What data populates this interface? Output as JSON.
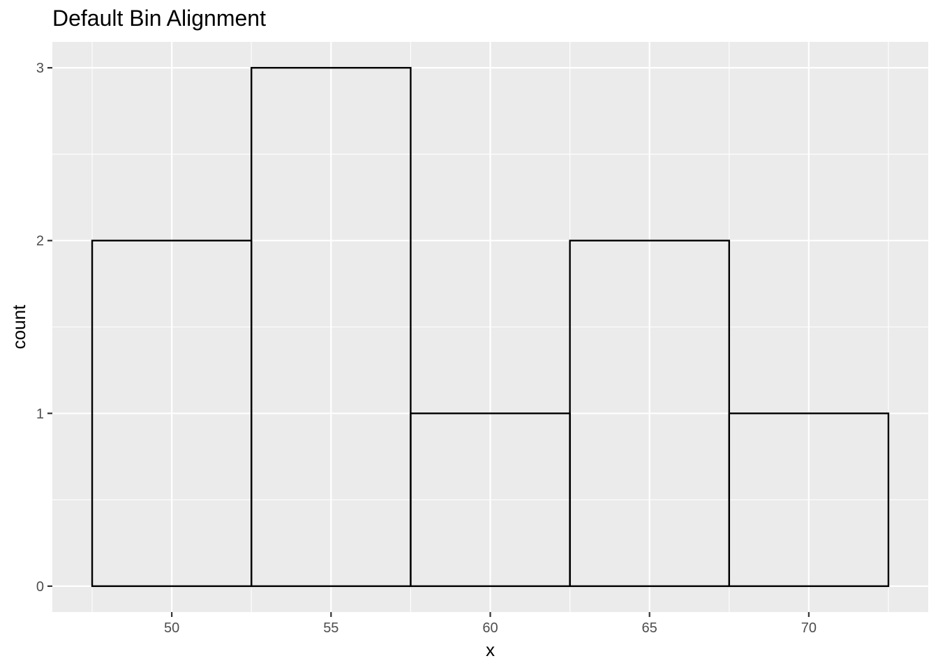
{
  "chart_data": {
    "type": "bar",
    "subtype": "histogram",
    "title": "Default Bin Alignment",
    "xlabel": "x",
    "ylabel": "count",
    "bins": [
      {
        "start": 47.5,
        "end": 52.5,
        "count": 2
      },
      {
        "start": 52.5,
        "end": 57.5,
        "count": 3
      },
      {
        "start": 57.5,
        "end": 62.5,
        "count": 1
      },
      {
        "start": 62.5,
        "end": 67.5,
        "count": 2
      },
      {
        "start": 67.5,
        "end": 72.5,
        "count": 1
      }
    ],
    "xlim": [
      46.25,
      73.75
    ],
    "ylim": [
      -0.15,
      3.15
    ],
    "x_ticks": [
      50,
      55,
      60,
      65,
      70
    ],
    "x_tick_labels": [
      "50",
      "55",
      "60",
      "65",
      "70"
    ],
    "y_ticks": [
      0,
      1,
      2,
      3
    ],
    "y_tick_labels": [
      "0",
      "1",
      "2",
      "3"
    ],
    "grid": true,
    "legend": "none",
    "colors": {
      "panel_background": "#ebebeb",
      "grid": "#ffffff",
      "bar_fill": "none",
      "bar_outline": "#000000",
      "tick_label": "#4d4d4d",
      "tick_mark": "#333333"
    }
  }
}
